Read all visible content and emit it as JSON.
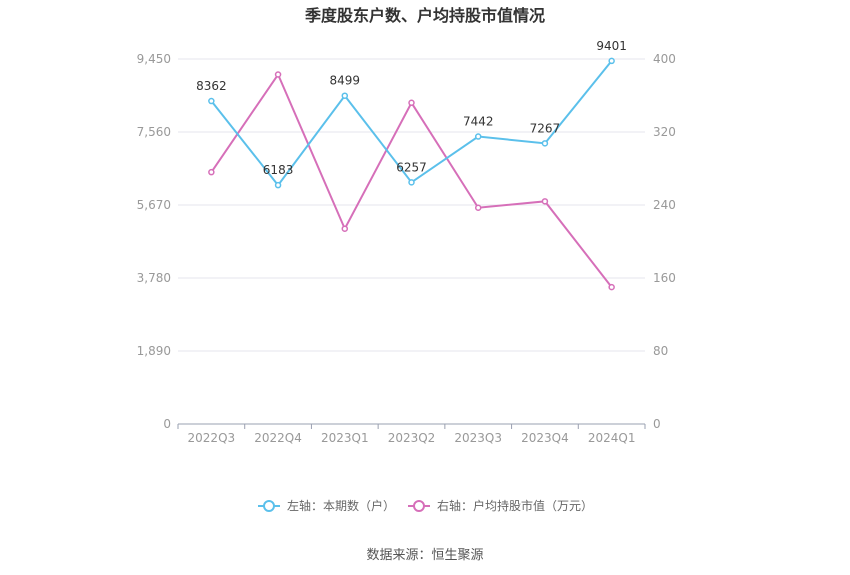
{
  "chart_data": {
    "type": "line",
    "title": "季度股东户数、户均持股市值情况",
    "categories": [
      "2022Q3",
      "2022Q4",
      "2023Q1",
      "2023Q2",
      "2023Q3",
      "2023Q4",
      "2024Q1"
    ],
    "left_axis": {
      "ylim": [
        0,
        9450
      ],
      "ticks": [
        "0",
        "1,890",
        "3,780",
        "5,670",
        "7,560",
        "9,450"
      ]
    },
    "right_axis": {
      "ylim": [
        0,
        400
      ],
      "ticks": [
        "0",
        "80",
        "160",
        "240",
        "320",
        "400"
      ]
    },
    "series": [
      {
        "name": "左轴：本期数（户）",
        "axis": "left",
        "color": "#5bc0eb",
        "values": [
          8362,
          6183,
          8499,
          6257,
          7442,
          7267,
          9401
        ],
        "labels": [
          "8362",
          "6183",
          "8499",
          "6257",
          "7442",
          "7267",
          "9401"
        ]
      },
      {
        "name": "右轴：户均持股市值（万元）",
        "axis": "right",
        "color": "#d66fb9",
        "values": [
          276,
          383,
          214,
          352,
          237,
          244,
          150
        ]
      }
    ],
    "grid": true,
    "legend_position": "bottom"
  },
  "source": "数据来源：恒生聚源"
}
